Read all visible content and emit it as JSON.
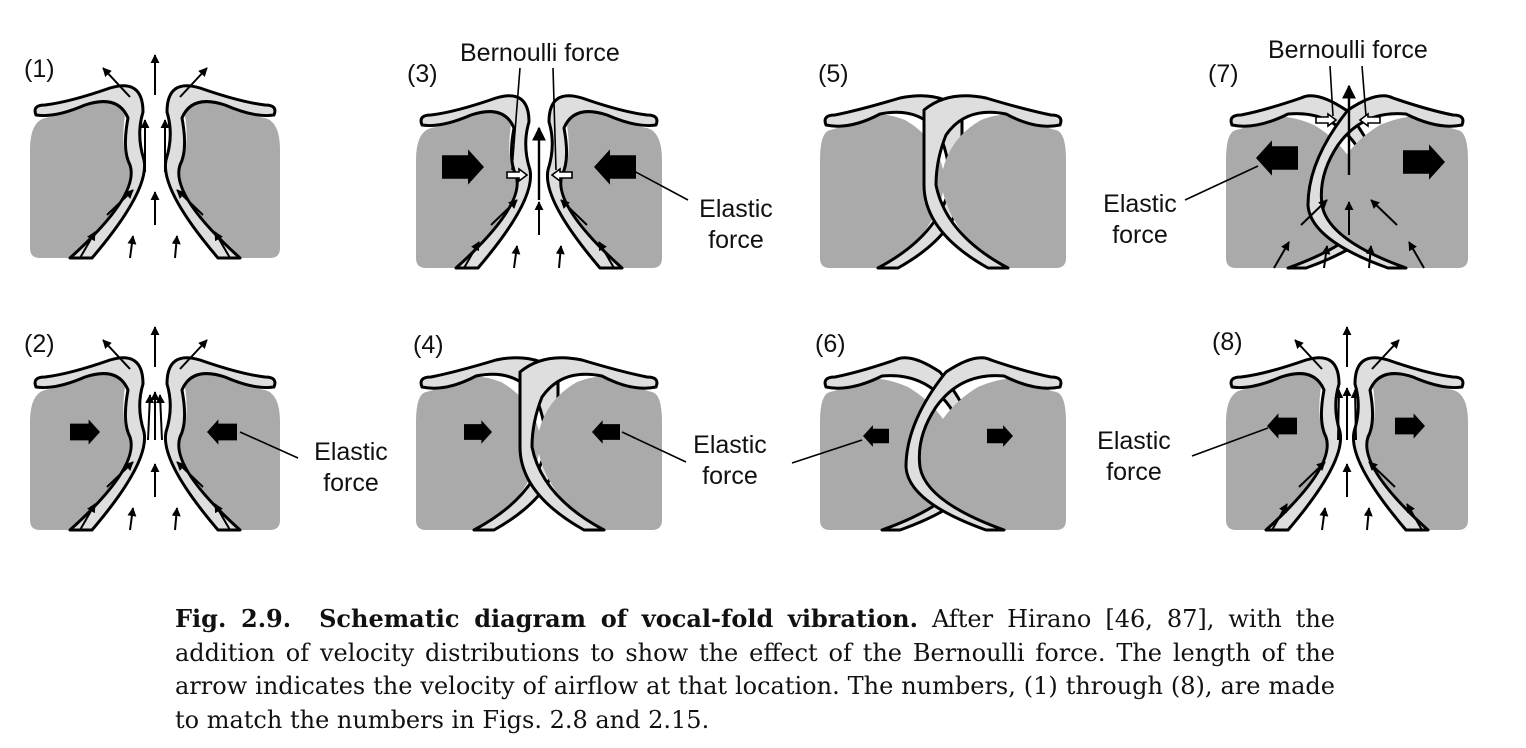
{
  "colors": {
    "muscle": "#aaaaaa",
    "mucosa": "#dedede",
    "outline": "#000000",
    "background": "#ffffff"
  },
  "figure": {
    "panels": [
      {
        "label": "(1)"
      },
      {
        "label": "(2)"
      },
      {
        "label": "(3)"
      },
      {
        "label": "(4)"
      },
      {
        "label": "(5)"
      },
      {
        "label": "(6)"
      },
      {
        "label": "(7)"
      },
      {
        "label": "(8)"
      }
    ],
    "annotations": {
      "bernoulli_3": "Bernoulli force",
      "bernoulli_7": "Bernoulli force",
      "elastic_2": [
        "Elastic",
        "force"
      ],
      "elastic_3": [
        "Elastic",
        "force"
      ],
      "elastic_4": [
        "Elastic",
        "force"
      ],
      "elastic_7": [
        "Elastic",
        "force"
      ],
      "elastic_8": [
        "Elastic",
        "force"
      ]
    }
  },
  "caption": {
    "fig_number": "Fig. 2.9.",
    "title": "Schematic diagram of vocal-fold vibration.",
    "body": "After Hirano [46, 87], with the addition of velocity distributions to show the effect of the Bernoulli force. The length of the arrow indicates the velocity of airflow at that location. The numbers, (1) through (8), are made to match the numbers in Figs. 2.8 and 2.15."
  }
}
